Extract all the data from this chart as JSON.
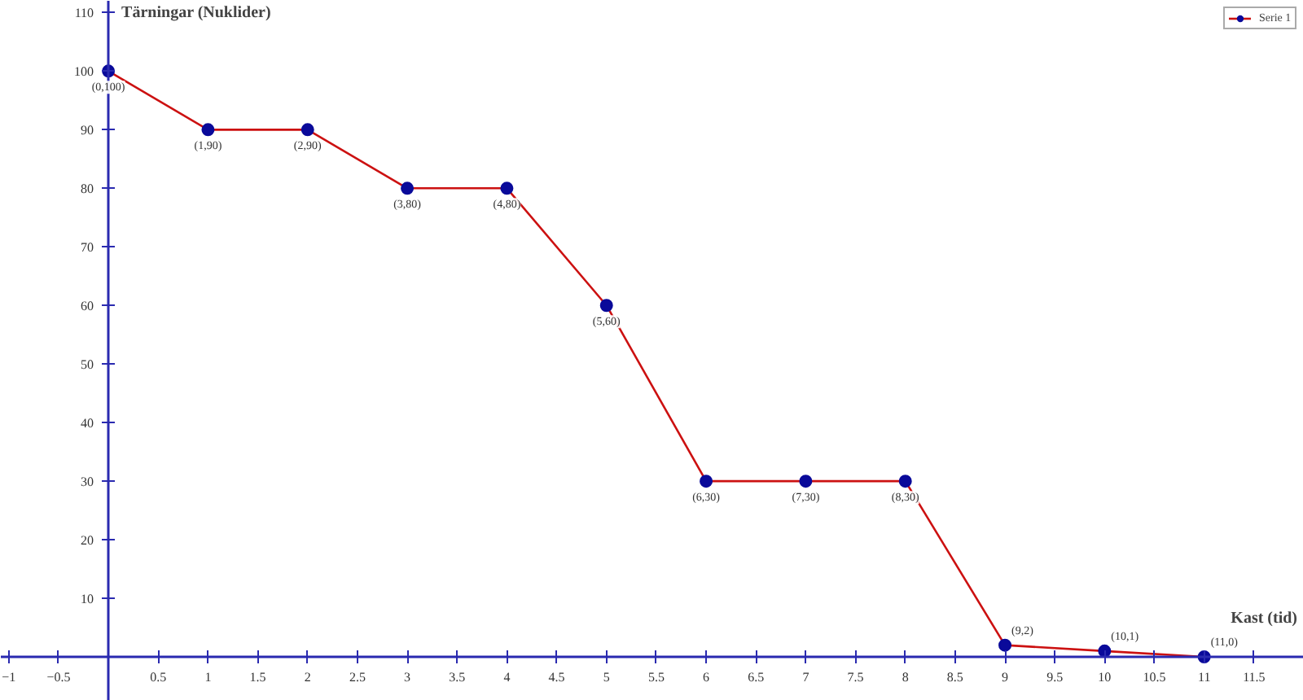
{
  "chart_data": {
    "type": "line",
    "xlabel": "Kast (tid)",
    "ylabel": "Tärningar (Nuklider)",
    "x": [
      0,
      1,
      2,
      3,
      4,
      5,
      6,
      7,
      8,
      9,
      10,
      11
    ],
    "series": [
      {
        "name": "Serie 1",
        "color": "#cc1111",
        "values": [
          100,
          90,
          90,
          80,
          80,
          60,
          30,
          30,
          30,
          2,
          1,
          0
        ]
      }
    ],
    "annotations": [
      {
        "text": "(0,100)",
        "x": 0,
        "y": 100
      },
      {
        "text": "(1,90)",
        "x": 1,
        "y": 90
      },
      {
        "text": "(2,90)",
        "x": 2,
        "y": 90
      },
      {
        "text": "(3,80)",
        "x": 3,
        "y": 80
      },
      {
        "text": "(4,80)",
        "x": 4,
        "y": 80
      },
      {
        "text": "(5,60)",
        "x": 5,
        "y": 60
      },
      {
        "text": "(6,30)",
        "x": 6,
        "y": 30
      },
      {
        "text": "(7,30)",
        "x": 7,
        "y": 30
      },
      {
        "text": "(8,30)",
        "x": 8,
        "y": 30
      },
      {
        "text": "(9,2)",
        "x": 9,
        "y": 2
      },
      {
        "text": "(10,1)",
        "x": 10,
        "y": 1
      },
      {
        "text": "(11,0)",
        "x": 11,
        "y": 0
      }
    ],
    "xlim": [
      -1.08,
      12.0
    ],
    "ylim": [
      -7.5,
      112
    ],
    "xticks": [
      -1,
      -0.5,
      0.5,
      1,
      1.5,
      2,
      2.5,
      3,
      3.5,
      4,
      4.5,
      5,
      5.5,
      6,
      6.5,
      7,
      7.5,
      8,
      8.5,
      9,
      9.5,
      10,
      10.5,
      11,
      11.5
    ],
    "yticks": [
      10,
      20,
      30,
      40,
      50,
      60,
      70,
      80,
      90,
      100,
      110
    ],
    "marker": "circle",
    "line_style": "solid",
    "grid": false,
    "legend": "top right"
  }
}
